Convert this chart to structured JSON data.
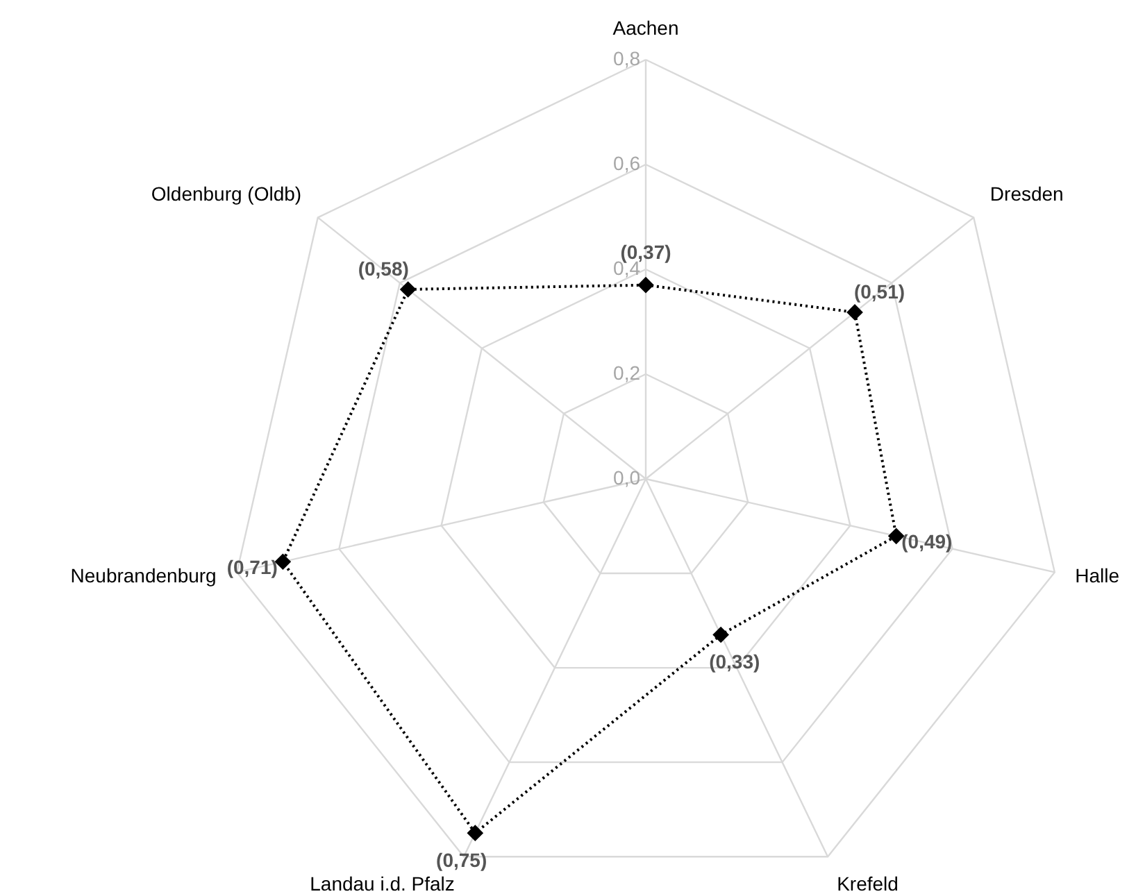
{
  "chart_data": {
    "type": "radar",
    "categories": [
      "Aachen",
      "Dresden",
      "Halle",
      "Krefeld",
      "Landau i.d. Pfalz",
      "Neubrandenburg",
      "Oldenburg (Oldb)"
    ],
    "series": [
      {
        "color": "#000000",
        "values": [
          0.37,
          0.51,
          0.49,
          0.33,
          0.75,
          0.71,
          0.58
        ],
        "value_labels": [
          "(0,37)",
          "(0,51)",
          "(0,49)",
          "(0,33)",
          "(0,75)",
          "(0,71)",
          "(0,58)"
        ]
      }
    ],
    "ylim": [
      0,
      0.8
    ],
    "yticks": [
      {
        "value": 0,
        "label": "0,0"
      },
      {
        "value": 0.2,
        "label": "0,2"
      },
      {
        "value": 0.4,
        "label": "0,4"
      },
      {
        "value": 0.6,
        "label": "0,6"
      },
      {
        "value": 0.8,
        "label": "0,8"
      }
    ],
    "grid": true,
    "marker": "diamond",
    "line_style": "dotted"
  }
}
